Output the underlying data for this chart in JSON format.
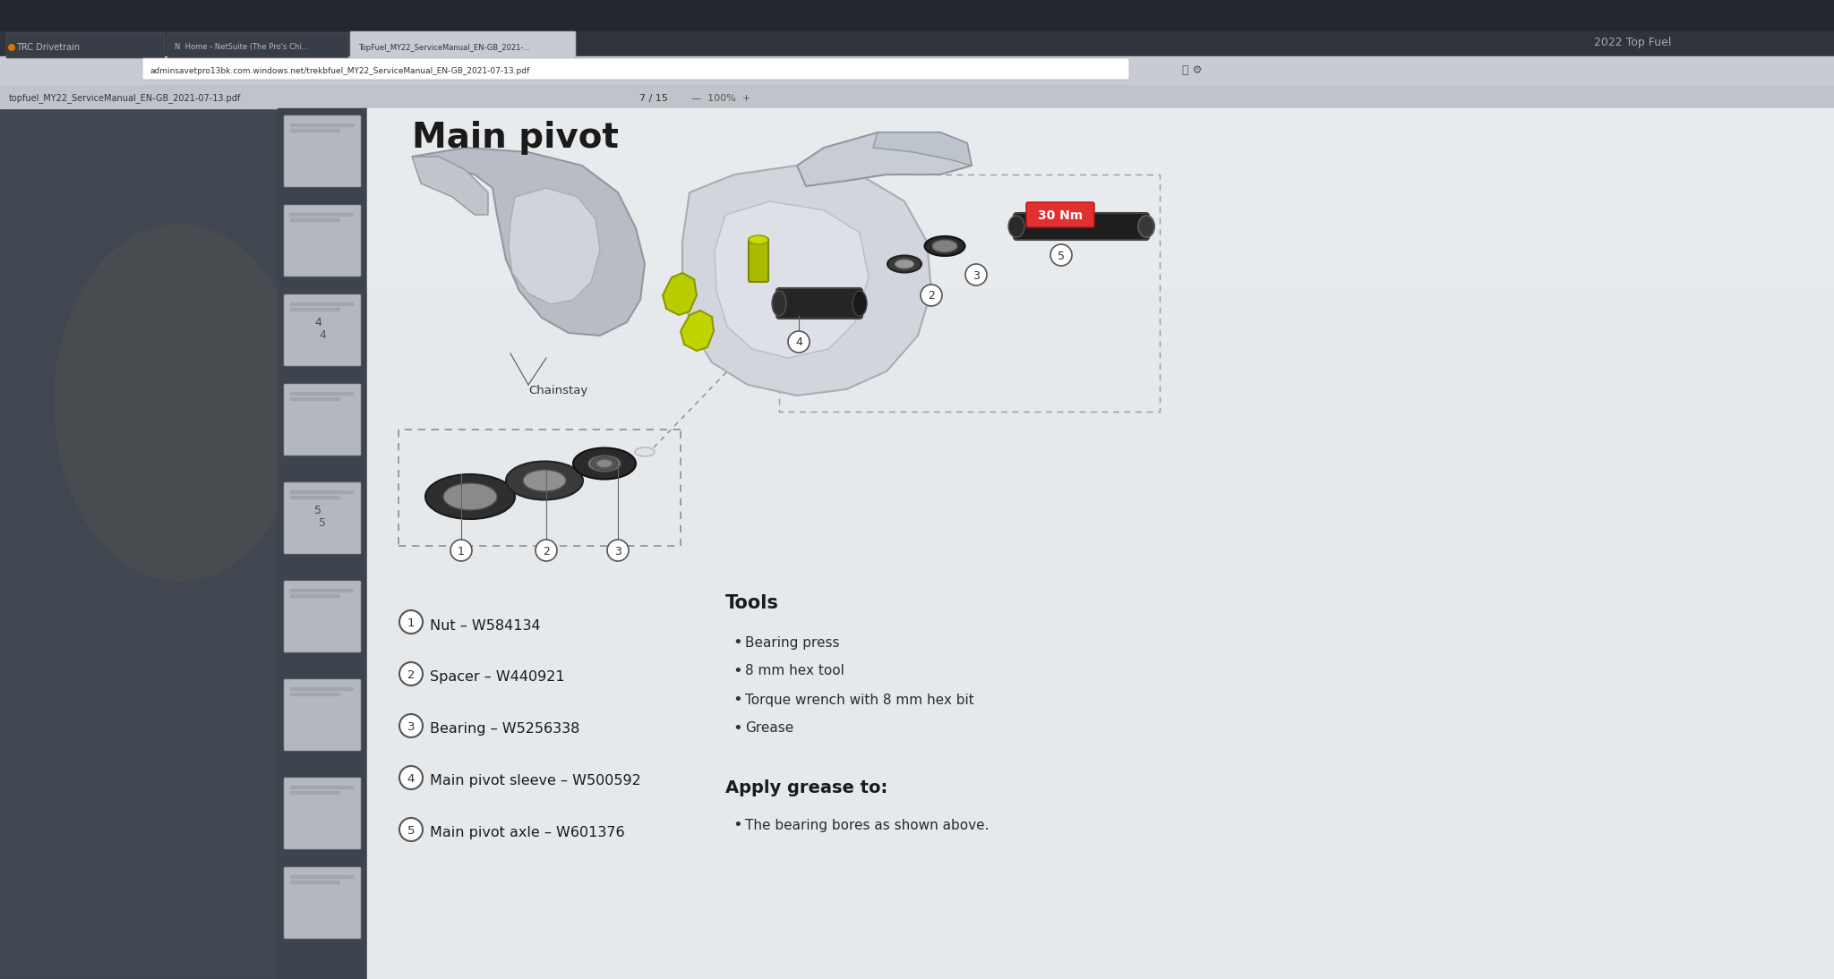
{
  "bg_color": "#636b72",
  "bg_color_left": "#4a5058",
  "bg_color_right": "#7a8088",
  "top_bar_color": "#2a2e35",
  "sidebar_color": "#3e444e",
  "page_bg": "#e8eaec",
  "page_bg_right": "#d0d4d8",
  "main_title": "Main pivot",
  "chainstay_label": "Chainstay",
  "torque_label": "30 Nm",
  "brand_label": "2022 Top Fuel",
  "page_nav": "7 / 15",
  "parts": [
    {
      "num": 1,
      "label": "Nut – W584134"
    },
    {
      "num": 2,
      "label": "Spacer – W440921"
    },
    {
      "num": 3,
      "label": "Bearing – W5256338"
    },
    {
      "num": 4,
      "label": "Main pivot sleeve – W500592"
    },
    {
      "num": 5,
      "label": "Main pivot axle – W601376"
    }
  ],
  "tools_title": "Tools",
  "tools": [
    "Bearing press",
    "8 mm hex tool",
    "Torque wrench with 8 mm hex bit",
    "Grease"
  ],
  "grease_title": "Apply grease to:",
  "grease_items": [
    "The bearing bores as shown above."
  ],
  "tab1_text": "TRC Drivetrain",
  "tab2_text": "N  Home - NetSuite (The Pro's Chi...",
  "tab3_text": "TopFuel_MY22_ServiceManual_EN-GB_2021-...",
  "url_text": "adminsavetpro13bk.com.windows.net/trekbfuel_MY22_ServiceManual_EN-GB_2021-07-13.pdf",
  "filename_text": "TopFuel_MY22_ServiceManual_EN-GB_2021-07-13.pdf",
  "filename2_text": "topfuel_MY22_ServiceManual_EN-GB_2021-07-13.pdf"
}
